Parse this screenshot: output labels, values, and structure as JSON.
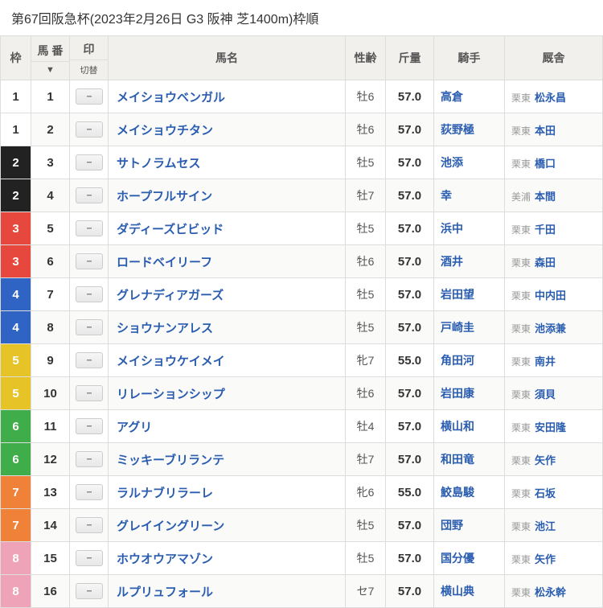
{
  "title": "第67回阪急杯(2023年2月26日 G3 阪神 芝1400m)枠順",
  "headers": {
    "waku": "枠",
    "num": "馬\n番",
    "num_sub": "▼",
    "mark": "印",
    "mark_sub": "切替",
    "name": "馬名",
    "sexage": "性齢",
    "weight": "斤量",
    "jockey": "騎手",
    "stable": "厩舎"
  },
  "mark_placeholder": "--",
  "rows": [
    {
      "waku": 1,
      "num": 1,
      "name": "メイショウベンガル",
      "sa": "牡6",
      "wt": "57.0",
      "jockey": "高倉",
      "region": "栗東",
      "trainer": "松永昌"
    },
    {
      "waku": 1,
      "num": 2,
      "name": "メイショウチタン",
      "sa": "牡6",
      "wt": "57.0",
      "jockey": "荻野極",
      "region": "栗東",
      "trainer": "本田"
    },
    {
      "waku": 2,
      "num": 3,
      "name": "サトノラムセス",
      "sa": "牡5",
      "wt": "57.0",
      "jockey": "池添",
      "region": "栗東",
      "trainer": "橋口"
    },
    {
      "waku": 2,
      "num": 4,
      "name": "ホープフルサイン",
      "sa": "牡7",
      "wt": "57.0",
      "jockey": "幸",
      "region": "美浦",
      "trainer": "本間"
    },
    {
      "waku": 3,
      "num": 5,
      "name": "ダディーズビビッド",
      "sa": "牡5",
      "wt": "57.0",
      "jockey": "浜中",
      "region": "栗東",
      "trainer": "千田"
    },
    {
      "waku": 3,
      "num": 6,
      "name": "ロードベイリーフ",
      "sa": "牡6",
      "wt": "57.0",
      "jockey": "酒井",
      "region": "栗東",
      "trainer": "森田"
    },
    {
      "waku": 4,
      "num": 7,
      "name": "グレナディアガーズ",
      "sa": "牡5",
      "wt": "57.0",
      "jockey": "岩田望",
      "region": "栗東",
      "trainer": "中内田"
    },
    {
      "waku": 4,
      "num": 8,
      "name": "ショウナンアレス",
      "sa": "牡5",
      "wt": "57.0",
      "jockey": "戸崎圭",
      "region": "栗東",
      "trainer": "池添兼"
    },
    {
      "waku": 5,
      "num": 9,
      "name": "メイショウケイメイ",
      "sa": "牝7",
      "wt": "55.0",
      "jockey": "角田河",
      "region": "栗東",
      "trainer": "南井"
    },
    {
      "waku": 5,
      "num": 10,
      "name": "リレーションシップ",
      "sa": "牡6",
      "wt": "57.0",
      "jockey": "岩田康",
      "region": "栗東",
      "trainer": "須貝"
    },
    {
      "waku": 6,
      "num": 11,
      "name": "アグリ",
      "sa": "牡4",
      "wt": "57.0",
      "jockey": "横山和",
      "region": "栗東",
      "trainer": "安田隆"
    },
    {
      "waku": 6,
      "num": 12,
      "name": "ミッキーブリランテ",
      "sa": "牡7",
      "wt": "57.0",
      "jockey": "和田竜",
      "region": "栗東",
      "trainer": "矢作"
    },
    {
      "waku": 7,
      "num": 13,
      "name": "ラルナブリラーレ",
      "sa": "牝6",
      "wt": "55.0",
      "jockey": "鮫島駿",
      "region": "栗東",
      "trainer": "石坂"
    },
    {
      "waku": 7,
      "num": 14,
      "name": "グレイイングリーン",
      "sa": "牡5",
      "wt": "57.0",
      "jockey": "団野",
      "region": "栗東",
      "trainer": "池江"
    },
    {
      "waku": 8,
      "num": 15,
      "name": "ホウオウアマゾン",
      "sa": "牡5",
      "wt": "57.0",
      "jockey": "国分優",
      "region": "栗東",
      "trainer": "矢作"
    },
    {
      "waku": 8,
      "num": 16,
      "name": "ルプリュフォール",
      "sa": "セ7",
      "wt": "57.0",
      "jockey": "横山典",
      "region": "栗東",
      "trainer": "松永幹"
    }
  ],
  "waku_colors": {
    "1": "#ffffff",
    "2": "#222222",
    "3": "#e7483d",
    "4": "#3064c4",
    "5": "#e6c428",
    "6": "#3fad4a",
    "7": "#ef8238",
    "8": "#eea3b8"
  }
}
